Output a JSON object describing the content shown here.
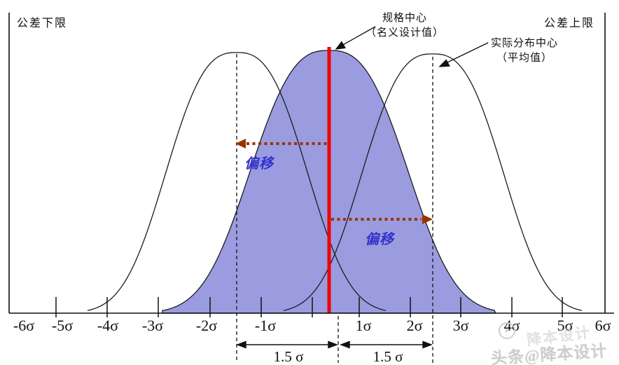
{
  "colors": {
    "fill_blue": "#9b9be0",
    "line_red": "#ee0000",
    "arrow_brown": "#993300",
    "shift_text_blue": "#3333cc",
    "curve_stroke": "#1c1c1c"
  },
  "labels": {
    "tolerance_lower": "公差下限",
    "tolerance_upper": "公差上限",
    "spec_center_line1": "规格中心",
    "spec_center_line2": "（名义设计值）",
    "actual_center_line1": "实际分布中心",
    "actual_center_line2": "（平均值）",
    "shift_left": "偏移",
    "shift_right": "偏移",
    "dim_left": "1.5 σ",
    "dim_right": "1.5 σ"
  },
  "watermark": {
    "primary": "头条@降本设计",
    "secondary": "降本设计",
    "logo_glyph": "➤"
  },
  "chart_data": {
    "type": "area",
    "x_tick_labels": [
      "-6σ",
      "-5σ",
      "-4σ",
      "-3σ",
      "-2σ",
      "-1σ",
      "1σ",
      "2σ",
      "3σ",
      "4σ",
      "5σ",
      "6σ"
    ],
    "x_range_sigma": [
      -6,
      6
    ],
    "tolerance_limits_sigma": [
      -6,
      6
    ],
    "shift_sigma": 1.5,
    "shift_label": "偏移",
    "dimension_labels": [
      "1.5 σ",
      "1.5 σ"
    ],
    "curves": [
      {
        "id": "shifted-left",
        "center_sigma": -1.5,
        "filled": false,
        "center_marker": "dashed-line"
      },
      {
        "id": "spec-centered",
        "center_sigma": 0,
        "filled": true,
        "center_marker": "red-line"
      },
      {
        "id": "shifted-right",
        "center_sigma": 1.5,
        "filled": false,
        "center_marker": "dashed-line"
      }
    ],
    "annotations": {
      "tolerance_lower": "公差下限",
      "tolerance_upper": "公差上限",
      "spec_center": "规格中心（名义设计值）",
      "actual_center": "实际分布中心（平均值）"
    },
    "grid": false,
    "legend": false
  }
}
